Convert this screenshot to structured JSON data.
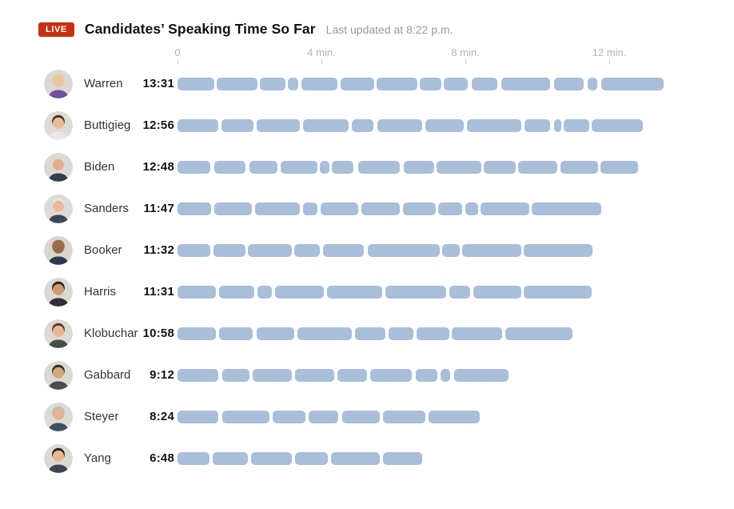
{
  "header": {
    "live_label": "LIVE",
    "title": "Candidates’ Speaking Time So Far",
    "updated": "Last updated at 8:22 p.m."
  },
  "axis_ticks": [
    {
      "label": "0",
      "min": 0
    },
    {
      "label": "4 min.",
      "min": 4
    },
    {
      "label": "8 min.",
      "min": 8
    },
    {
      "label": "12 min.",
      "min": 12
    }
  ],
  "colors": {
    "bar_segment": "#a9bed8",
    "live_badge_bg": "#c5310e",
    "live_badge_text": "#ffffff",
    "axis_label": "#b5b5b5",
    "tick": "#cccccc",
    "title_text": "#121212",
    "updated_text": "#999999",
    "name_text": "#333333",
    "time_text": "#121212",
    "background": "#ffffff"
  },
  "chart_data": {
    "type": "bar",
    "orientation": "horizontal",
    "title": "Candidates’ Speaking Time So Far",
    "subtitle": "Last updated at 8:22 p.m.",
    "x_unit": "minutes",
    "xlim": [
      0,
      14.3
    ],
    "x_ticks": [
      0,
      4,
      8,
      12
    ],
    "x_tick_labels": [
      "0",
      "4 min.",
      "8 min.",
      "12 min."
    ],
    "grid": false,
    "note": "Each bar is split into rounded segments representing separate speaking turns; segment start/end values are in minutes from 0.",
    "rows": [
      {
        "name": "Warren",
        "time": "13:31",
        "total_minutes": 13.52,
        "segments": [
          [
            0.0,
            1.02
          ],
          [
            1.09,
            2.22
          ],
          [
            2.29,
            3.0
          ],
          [
            3.07,
            3.36
          ],
          [
            3.44,
            4.44
          ],
          [
            4.53,
            5.47
          ],
          [
            5.53,
            6.67
          ],
          [
            6.73,
            7.33
          ],
          [
            7.4,
            8.07
          ],
          [
            8.18,
            8.89
          ],
          [
            9.0,
            10.36
          ],
          [
            10.47,
            11.29
          ],
          [
            11.4,
            11.67
          ],
          [
            11.78,
            13.52
          ]
        ],
        "avatar": {
          "bg": "#ddd8d2",
          "hair": "#e3cf9f",
          "skin": "#ecc3a3",
          "shirt": "#6e4fa0"
        }
      },
      {
        "name": "Buttigieg",
        "time": "12:56",
        "total_minutes": 12.93,
        "segments": [
          [
            0.0,
            1.13
          ],
          [
            1.22,
            2.11
          ],
          [
            2.2,
            3.4
          ],
          [
            3.49,
            4.76
          ],
          [
            4.84,
            5.44
          ],
          [
            5.56,
            6.8
          ],
          [
            6.89,
            7.96
          ],
          [
            8.04,
            9.56
          ],
          [
            9.64,
            10.36
          ],
          [
            10.47,
            10.67
          ],
          [
            10.73,
            11.44
          ],
          [
            11.51,
            12.93
          ]
        ],
        "avatar": {
          "bg": "#dfdcd8",
          "hair": "#42332a",
          "skin": "#e9bb97",
          "shirt": "#e9e9e9"
        }
      },
      {
        "name": "Biden",
        "time": "12:48",
        "total_minutes": 12.8,
        "segments": [
          [
            0.0,
            0.91
          ],
          [
            1.02,
            1.9
          ],
          [
            1.99,
            2.77
          ],
          [
            2.87,
            3.88
          ],
          [
            3.96,
            4.22
          ],
          [
            4.29,
            4.88
          ],
          [
            5.03,
            6.18
          ],
          [
            6.29,
            7.14
          ],
          [
            7.21,
            8.44
          ],
          [
            8.51,
            9.4
          ],
          [
            9.47,
            10.55
          ],
          [
            10.64,
            11.68
          ],
          [
            11.76,
            12.8
          ]
        ],
        "avatar": {
          "bg": "#dcd9d4",
          "hair": "#d9d9d5",
          "skin": "#e5ac8b",
          "shirt": "#303d50"
        }
      },
      {
        "name": "Sanders",
        "time": "11:47",
        "total_minutes": 11.78,
        "segments": [
          [
            0.0,
            0.93
          ],
          [
            1.02,
            2.07
          ],
          [
            2.16,
            3.4
          ],
          [
            3.49,
            3.88
          ],
          [
            3.98,
            5.03
          ],
          [
            5.12,
            6.18
          ],
          [
            6.27,
            7.18
          ],
          [
            7.25,
            7.92
          ],
          [
            7.99,
            8.35
          ],
          [
            8.42,
            9.77
          ],
          [
            9.84,
            11.78
          ]
        ],
        "avatar": {
          "bg": "#dedbd6",
          "hair": "#e6e5e1",
          "skin": "#ecb89c",
          "shirt": "#3a4656"
        }
      },
      {
        "name": "Booker",
        "time": "11:32",
        "total_minutes": 11.53,
        "segments": [
          [
            0.0,
            0.91
          ],
          [
            0.99,
            1.88
          ],
          [
            1.96,
            3.18
          ],
          [
            3.25,
            3.96
          ],
          [
            4.05,
            5.18
          ],
          [
            5.29,
            7.29
          ],
          [
            7.36,
            7.84
          ],
          [
            7.92,
            9.55
          ],
          [
            9.63,
            11.53
          ]
        ],
        "avatar": {
          "bg": "#d9d5cf",
          "hair": "#9c6b47",
          "skin": "#9c6b47",
          "shirt": "#2e3a50"
        }
      },
      {
        "name": "Harris",
        "time": "11:31",
        "total_minutes": 11.52,
        "segments": [
          [
            0.0,
            1.07
          ],
          [
            1.16,
            2.14
          ],
          [
            2.23,
            2.62
          ],
          [
            2.72,
            4.07
          ],
          [
            4.16,
            5.7
          ],
          [
            5.77,
            7.47
          ],
          [
            7.55,
            8.14
          ],
          [
            8.22,
            9.55
          ],
          [
            9.62,
            11.52
          ]
        ],
        "avatar": {
          "bg": "#dcd8d3",
          "hair": "#251f1e",
          "skin": "#cf9a6e",
          "shirt": "#332e35"
        }
      },
      {
        "name": "Klobuchar",
        "time": "10:58",
        "total_minutes": 10.97,
        "segments": [
          [
            0.0,
            1.07
          ],
          [
            1.16,
            2.1
          ],
          [
            2.2,
            3.25
          ],
          [
            3.34,
            4.84
          ],
          [
            4.94,
            5.77
          ],
          [
            5.86,
            6.55
          ],
          [
            6.64,
            7.55
          ],
          [
            7.62,
            9.03
          ],
          [
            9.12,
            10.97
          ]
        ],
        "avatar": {
          "bg": "#ddd9d3",
          "hair": "#53392c",
          "skin": "#e8b693",
          "shirt": "#42503f"
        }
      },
      {
        "name": "Gabbard",
        "time": "9:12",
        "total_minutes": 9.2,
        "segments": [
          [
            0.0,
            1.13
          ],
          [
            1.24,
            2.0
          ],
          [
            2.09,
            3.18
          ],
          [
            3.27,
            4.36
          ],
          [
            4.44,
            5.27
          ],
          [
            5.36,
            6.51
          ],
          [
            6.62,
            7.22
          ],
          [
            7.31,
            7.58
          ],
          [
            7.69,
            9.2
          ]
        ],
        "avatar": {
          "bg": "#dbd7d1",
          "hair": "#2f2c30",
          "skin": "#d3a77f",
          "shirt": "#4a4c52"
        }
      },
      {
        "name": "Steyer",
        "time": "8:24",
        "total_minutes": 8.4,
        "segments": [
          [
            0.0,
            1.13
          ],
          [
            1.24,
            2.55
          ],
          [
            2.64,
            3.55
          ],
          [
            3.64,
            4.47
          ],
          [
            4.57,
            5.62
          ],
          [
            5.72,
            6.88
          ],
          [
            6.98,
            8.4
          ]
        ],
        "avatar": {
          "bg": "#dedad4",
          "hair": "#c0bbb2",
          "skin": "#e2b294",
          "shirt": "#3e4f63"
        }
      },
      {
        "name": "Yang",
        "time": "6:48",
        "total_minutes": 6.8,
        "segments": [
          [
            0.0,
            0.88
          ],
          [
            0.97,
            1.96
          ],
          [
            2.05,
            3.18
          ],
          [
            3.27,
            4.18
          ],
          [
            4.27,
            5.62
          ],
          [
            5.7,
            6.8
          ]
        ],
        "avatar": {
          "bg": "#dcd8d2",
          "hair": "#26211f",
          "skin": "#e6b691",
          "shirt": "#3c4553"
        }
      }
    ]
  }
}
